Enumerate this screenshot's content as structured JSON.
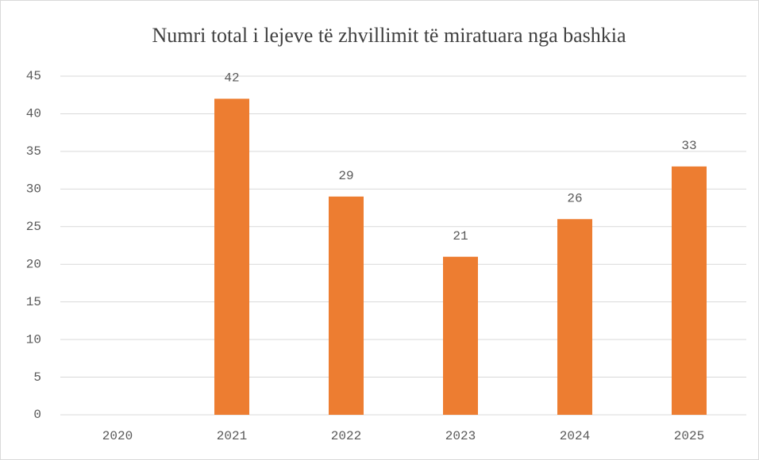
{
  "chart_data": {
    "type": "bar",
    "title": "Numri total i lejeve të zhvillimit të miratuara nga bashkia",
    "categories": [
      "2020",
      "2021",
      "2022",
      "2023",
      "2024",
      "2025"
    ],
    "values": [
      null,
      42,
      29,
      21,
      26,
      33
    ],
    "color": "#ed7d31",
    "ylim": [
      0,
      45
    ],
    "yticks": [
      0,
      5,
      10,
      15,
      20,
      25,
      30,
      35,
      40,
      45
    ],
    "grid": true,
    "data_labels": true
  }
}
